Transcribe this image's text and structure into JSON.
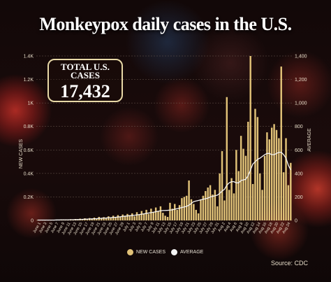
{
  "header": {
    "title": "Monkeypox daily cases in the U.S."
  },
  "total_box": {
    "label": "TOTAL U.S. CASES",
    "value": "17,432"
  },
  "legend": {
    "new_cases": "NEW CASES",
    "average": "AVERAGE"
  },
  "source": "Source: CDC",
  "colors": {
    "bar": "#e1c278",
    "average_line": "#f4f4f4",
    "gridline": "#6a5a50",
    "tick_text": "#e6dcc8"
  },
  "chart_data": {
    "type": "bar",
    "ylabel_left": "NEW CASES",
    "ylabel_right": "AVERAGE",
    "ylim_left": [
      0,
      1400
    ],
    "ylim_right": [
      0,
      1400
    ],
    "yticks_left": [
      "0",
      "0.2K",
      "0.4K",
      "0.6K",
      "0.8K",
      "1K",
      "1.2K",
      "1.4K"
    ],
    "yticks_right": [
      "0",
      "200",
      "400",
      "600",
      "800",
      "1,000",
      "1,200",
      "1,400"
    ],
    "grid": true,
    "legend_position": "bottom",
    "x_labels": [
      "June 1",
      "June 3",
      "June 5",
      "June 7",
      "June 9",
      "June 11",
      "June 13",
      "June 15",
      "June 17",
      "June 19",
      "June 21",
      "June 23",
      "June 25",
      "June 27",
      "June 29",
      "July 1",
      "July 3",
      "July 5",
      "July 7",
      "July 9",
      "July 11",
      "July 13",
      "July 15",
      "July 17",
      "July 19",
      "July 21",
      "July 23",
      "July 25",
      "July 27",
      "July 29",
      "July 31",
      "Aug 2",
      "Aug 4",
      "Aug 6",
      "Aug 8",
      "Aug 10",
      "Aug 12",
      "Aug 14",
      "Aug 16",
      "Aug 18",
      "Aug 20",
      "Aug 22",
      "Aug 24"
    ],
    "series": [
      {
        "name": "NEW CASES",
        "values": [
          3,
          2,
          4,
          1,
          3,
          5,
          2,
          6,
          4,
          3,
          8,
          5,
          7,
          4,
          10,
          9,
          12,
          6,
          15,
          10,
          18,
          12,
          20,
          16,
          24,
          14,
          30,
          22,
          28,
          20,
          35,
          25,
          40,
          30,
          45,
          28,
          50,
          40,
          55,
          45,
          60,
          35,
          70,
          50,
          80,
          60,
          90,
          55,
          100,
          70,
          110,
          80,
          120,
          65,
          40,
          30,
          150,
          100,
          140,
          90,
          130,
          190,
          200,
          210,
          340,
          180,
          140,
          90,
          60,
          180,
          210,
          250,
          280,
          300,
          220,
          260,
          120,
          400,
          590,
          170,
          1050,
          260,
          360,
          230,
          600,
          420,
          720,
          610,
          550,
          840,
          1400,
          310,
          950,
          880,
          400,
          260,
          550,
          750,
          690,
          790,
          820,
          770,
          700,
          1310,
          410,
          700,
          300,
          490
        ]
      },
      {
        "name": "AVERAGE",
        "values": [
          3,
          3,
          3,
          3,
          3,
          3,
          3,
          3,
          4,
          4,
          5,
          5,
          5,
          5,
          6,
          6,
          7,
          7,
          8,
          9,
          10,
          11,
          12,
          13,
          14,
          15,
          17,
          18,
          20,
          21,
          23,
          24,
          26,
          27,
          29,
          31,
          34,
          36,
          38,
          40,
          42,
          44,
          47,
          50,
          53,
          56,
          60,
          63,
          66,
          70,
          74,
          78,
          82,
          84,
          85,
          86,
          88,
          90,
          95,
          100,
          104,
          110,
          115,
          120,
          130,
          145,
          160,
          165,
          170,
          175,
          180,
          185,
          190,
          200,
          205,
          210,
          215,
          230,
          250,
          265,
          300,
          320,
          330,
          330,
          320,
          320,
          340,
          345,
          350,
          380,
          430,
          480,
          500,
          520,
          530,
          545,
          560,
          570,
          570,
          560,
          560,
          570,
          580,
          580,
          560,
          530,
          470,
          430
        ]
      }
    ]
  }
}
